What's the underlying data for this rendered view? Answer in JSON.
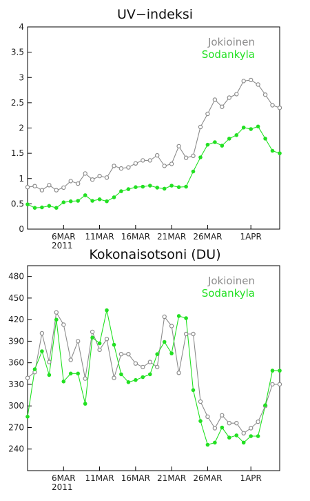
{
  "chart_data": [
    {
      "type": "line",
      "title": "UV−indeksi",
      "ylim": [
        0,
        4
      ],
      "yticks": [
        0,
        0.5,
        1,
        1.5,
        2,
        2.5,
        3,
        3.5,
        4
      ],
      "ytick_labels": [
        "0",
        "0.5",
        "1",
        "1.5",
        "2",
        "2.5",
        "3",
        "3.5",
        "4"
      ],
      "x_range_days": [
        1,
        36
      ],
      "xticks": [
        {
          "day": 6,
          "label": "6MAR",
          "sublabel": "2011"
        },
        {
          "day": 11,
          "label": "11MAR",
          "sublabel": ""
        },
        {
          "day": 16,
          "label": "16MAR",
          "sublabel": ""
        },
        {
          "day": 21,
          "label": "21MAR",
          "sublabel": ""
        },
        {
          "day": 26,
          "label": "26MAR",
          "sublabel": ""
        },
        {
          "day": 32,
          "label": "1APR",
          "sublabel": ""
        }
      ],
      "legend_position": "top-right",
      "grid": false,
      "series": [
        {
          "name": "Jokioinen",
          "color": "#8c8c8c",
          "marker": "open-circle",
          "x": [
            1,
            2,
            3,
            4,
            5,
            6,
            7,
            8,
            9,
            10,
            11,
            12,
            13,
            14,
            15,
            16,
            17,
            18,
            19,
            20,
            21,
            22,
            23,
            24,
            25,
            26,
            27,
            28,
            29,
            30,
            31,
            32,
            33,
            34,
            35,
            36
          ],
          "values": [
            0.83,
            0.85,
            0.77,
            0.87,
            0.77,
            0.82,
            0.95,
            0.9,
            1.1,
            0.98,
            1.05,
            1.02,
            1.25,
            1.2,
            1.22,
            1.3,
            1.36,
            1.36,
            1.46,
            1.25,
            1.29,
            1.64,
            1.41,
            1.45,
            2.02,
            2.28,
            2.56,
            2.42,
            2.6,
            2.67,
            2.93,
            2.95,
            2.86,
            2.66,
            2.45,
            2.4
          ]
        },
        {
          "name": "Sodankyla",
          "color": "#22e022",
          "marker": "filled-circle",
          "x": [
            1,
            2,
            3,
            4,
            5,
            6,
            7,
            8,
            9,
            10,
            11,
            12,
            13,
            14,
            15,
            16,
            17,
            18,
            19,
            20,
            21,
            22,
            23,
            24,
            25,
            26,
            27,
            28,
            29,
            30,
            31,
            32,
            33,
            34,
            35,
            36
          ],
          "values": [
            0.49,
            0.42,
            0.43,
            0.46,
            0.42,
            0.53,
            0.55,
            0.56,
            0.67,
            0.56,
            0.59,
            0.55,
            0.63,
            0.75,
            0.79,
            0.83,
            0.84,
            0.86,
            0.82,
            0.8,
            0.86,
            0.83,
            0.84,
            1.14,
            1.42,
            1.67,
            1.72,
            1.65,
            1.79,
            1.86,
            2.01,
            1.98,
            2.03,
            1.79,
            1.55,
            1.5
          ]
        }
      ]
    },
    {
      "type": "line",
      "title": "Kokonaisotsoni (DU)",
      "ylim": [
        210,
        495
      ],
      "yticks": [
        240,
        270,
        300,
        330,
        360,
        390,
        420,
        450,
        480
      ],
      "ytick_labels": [
        "240",
        "270",
        "300",
        "330",
        "360",
        "390",
        "420",
        "450",
        "480"
      ],
      "x_range_days": [
        1,
        36
      ],
      "xticks": [
        {
          "day": 6,
          "label": "6MAR",
          "sublabel": "2011"
        },
        {
          "day": 11,
          "label": "11MAR",
          "sublabel": ""
        },
        {
          "day": 16,
          "label": "16MAR",
          "sublabel": ""
        },
        {
          "day": 21,
          "label": "21MAR",
          "sublabel": ""
        },
        {
          "day": 26,
          "label": "26MAR",
          "sublabel": ""
        },
        {
          "day": 32,
          "label": "1APR",
          "sublabel": ""
        }
      ],
      "legend_position": "top-right",
      "grid": false,
      "series": [
        {
          "name": "Jokioinen",
          "color": "#8c8c8c",
          "marker": "open-circle",
          "x": [
            1,
            2,
            3,
            4,
            5,
            6,
            7,
            8,
            9,
            10,
            11,
            12,
            13,
            14,
            15,
            16,
            17,
            18,
            19,
            20,
            21,
            22,
            23,
            24,
            25,
            26,
            27,
            28,
            29,
            30,
            31,
            32,
            33,
            34,
            35,
            36
          ],
          "values": [
            339,
            347,
            401,
            361,
            430,
            413,
            364,
            390,
            338,
            403,
            378,
            393,
            339,
            372,
            372,
            359,
            354,
            361,
            354,
            424,
            411,
            346,
            400,
            400,
            306,
            285,
            269,
            287,
            276,
            276,
            262,
            269,
            278,
            300,
            330,
            330
          ]
        },
        {
          "name": "Sodankyla",
          "color": "#22e022",
          "marker": "filled-circle",
          "x": [
            1,
            2,
            3,
            4,
            5,
            6,
            7,
            8,
            9,
            10,
            11,
            12,
            13,
            14,
            15,
            16,
            17,
            18,
            19,
            20,
            21,
            22,
            23,
            24,
            25,
            26,
            27,
            28,
            29,
            30,
            31,
            32,
            33,
            34,
            35,
            36
          ],
          "values": [
            285,
            351,
            376,
            343,
            420,
            334,
            345,
            345,
            303,
            395,
            387,
            433,
            385,
            344,
            333,
            336,
            340,
            344,
            372,
            389,
            373,
            425,
            422,
            322,
            279,
            246,
            249,
            270,
            256,
            259,
            249,
            258,
            258,
            301,
            349,
            349
          ]
        }
      ]
    }
  ]
}
